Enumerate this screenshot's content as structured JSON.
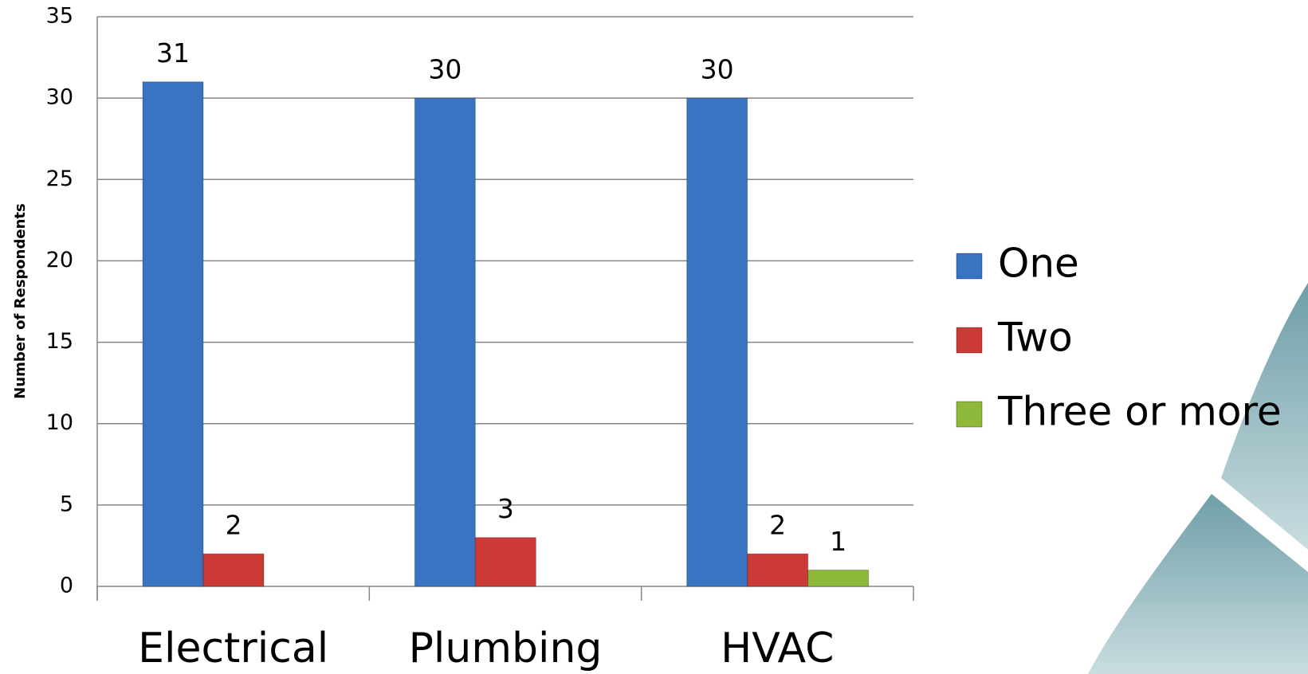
{
  "chart_data": {
    "type": "bar",
    "y_label": "Number of Respondents",
    "categories": [
      "Electrical",
      "Plumbing",
      "HVAC"
    ],
    "series": [
      {
        "name": "One",
        "color": "#3a73c2",
        "values": [
          31,
          30,
          30
        ]
      },
      {
        "name": "Two",
        "color": "#cc3a35",
        "values": [
          2,
          3,
          2
        ]
      },
      {
        "name": "Three or more",
        "color": "#8db83a",
        "values": [
          null,
          null,
          1
        ]
      }
    ],
    "ylim": [
      0,
      35
    ],
    "yticks": [
      0,
      5,
      10,
      15,
      20,
      25,
      30,
      35
    ],
    "grid": true,
    "legend": "right"
  }
}
